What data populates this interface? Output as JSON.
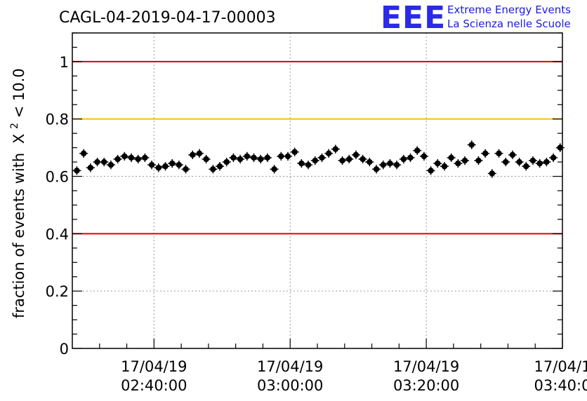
{
  "logo": {
    "mark": "EEE",
    "line1": "Extreme Energy Events",
    "line2": "La Scienza nelle Scuole"
  },
  "chart_data": {
    "type": "scatter",
    "title": "CAGL-04-2019-04-17-00003",
    "xlabel": "",
    "ylabel": "fraction of events with",
    "ylabel_symbol": "X",
    "ylabel_superscript": "2",
    "ylabel_suffix": " < 10.0",
    "ylim": [
      0,
      1.1
    ],
    "yticks": [
      {
        "value": 0,
        "label": "0"
      },
      {
        "value": 0.2,
        "label": "0.2"
      },
      {
        "value": 0.4,
        "label": "0.4"
      },
      {
        "value": 0.6,
        "label": "0.6"
      },
      {
        "value": 0.8,
        "label": "0.8"
      },
      {
        "value": 1,
        "label": "1"
      }
    ],
    "xlim": [
      "02:28:00",
      "03:40:00"
    ],
    "xticks": [
      {
        "time": "02:40:00",
        "date": "17/04/19",
        "time_label": "02:40:00"
      },
      {
        "time": "03:00:00",
        "date": "17/04/19",
        "time_label": "03:00:00"
      },
      {
        "time": "03:20:00",
        "date": "17/04/19",
        "time_label": "03:20:00"
      },
      {
        "time": "03:40:00",
        "date": "17/04/1",
        "time_label": "03:40:0"
      }
    ],
    "grid": true,
    "reference_lines": [
      {
        "y": 1.0,
        "color": "#e00000"
      },
      {
        "y": 0.8,
        "color": "#ffc000"
      },
      {
        "y": 0.4,
        "color": "#e00000"
      }
    ],
    "marker_color": "#000000",
    "series": [
      {
        "x": [
          "02:28:40",
          "02:29:40",
          "02:30:40",
          "02:31:40",
          "02:32:40",
          "02:33:40",
          "02:34:40",
          "02:35:40",
          "02:36:40",
          "02:37:40",
          "02:38:40",
          "02:39:40",
          "02:40:40",
          "02:41:40",
          "02:42:40",
          "02:43:40",
          "02:44:40",
          "02:45:40",
          "02:46:40",
          "02:47:40",
          "02:48:40",
          "02:49:40",
          "02:50:40",
          "02:51:40",
          "02:52:40",
          "02:53:40",
          "02:54:40",
          "02:55:40",
          "02:56:40",
          "02:57:40",
          "02:58:40",
          "02:59:40",
          "03:00:40",
          "03:01:40",
          "03:02:40",
          "03:03:40",
          "03:04:40",
          "03:05:40",
          "03:06:40",
          "03:07:40",
          "03:08:40",
          "03:09:40",
          "03:10:40",
          "03:11:40",
          "03:12:40",
          "03:13:40",
          "03:14:40",
          "03:15:40",
          "03:16:40",
          "03:17:40",
          "03:18:40",
          "03:19:40",
          "03:20:40",
          "03:21:40",
          "03:22:40",
          "03:23:40",
          "03:24:40",
          "03:25:40",
          "03:26:40",
          "03:27:40",
          "03:28:40",
          "03:29:40",
          "03:30:40",
          "03:31:40",
          "03:32:40",
          "03:33:40",
          "03:34:40",
          "03:35:40",
          "03:36:40",
          "03:37:40",
          "03:38:40",
          "03:39:40"
        ],
        "y": [
          0.62,
          0.68,
          0.63,
          0.65,
          0.65,
          0.64,
          0.66,
          0.67,
          0.665,
          0.66,
          0.665,
          0.64,
          0.63,
          0.635,
          0.645,
          0.64,
          0.625,
          0.675,
          0.68,
          0.66,
          0.625,
          0.635,
          0.65,
          0.665,
          0.66,
          0.67,
          0.665,
          0.66,
          0.665,
          0.625,
          0.67,
          0.67,
          0.685,
          0.645,
          0.64,
          0.655,
          0.665,
          0.68,
          0.695,
          0.655,
          0.66,
          0.675,
          0.66,
          0.65,
          0.625,
          0.64,
          0.645,
          0.64,
          0.66,
          0.665,
          0.69,
          0.67,
          0.62,
          0.645,
          0.635,
          0.665,
          0.645,
          0.655,
          0.71,
          0.655,
          0.68,
          0.61,
          0.68,
          0.65,
          0.675,
          0.65,
          0.635,
          0.655,
          0.645,
          0.65,
          0.665,
          0.7
        ],
        "yerr": 0.015
      }
    ]
  }
}
